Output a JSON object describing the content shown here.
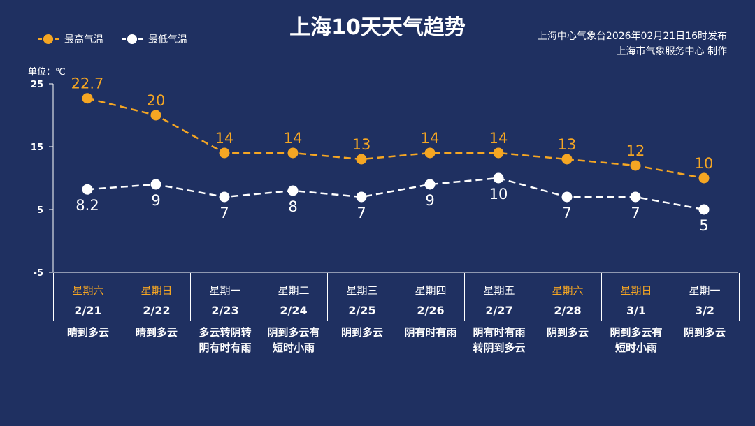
{
  "header": {
    "title": "上海10天天气趋势",
    "source_line1": "上海中心气象台2026年02月21日16时发布",
    "source_line2": "上海市气象服务中心  制作",
    "unit": "单位：℃"
  },
  "legend": {
    "high": "最高气温",
    "low": "最低气温"
  },
  "colors": {
    "background": "#1f3061",
    "high": "#f5a623",
    "low": "#ffffff",
    "weekend_text": "#f5a623"
  },
  "chart_data": {
    "type": "line",
    "title": "上海10天天气趋势",
    "ylabel": "单位：℃",
    "ylim": [
      -5,
      25
    ],
    "yticks": [
      25,
      15,
      5,
      -5
    ],
    "categories": [
      "2/21",
      "2/22",
      "2/23",
      "2/24",
      "2/25",
      "2/26",
      "2/27",
      "2/28",
      "3/1",
      "3/2"
    ],
    "series": [
      {
        "name": "最高气温",
        "values": [
          22.7,
          20,
          14,
          14,
          13,
          14,
          14,
          13,
          12,
          10
        ],
        "labels": [
          "22.7",
          "20",
          "14",
          "14",
          "13",
          "14",
          "14",
          "13",
          "12",
          "10"
        ]
      },
      {
        "name": "最低气温",
        "values": [
          8.2,
          9,
          7,
          8,
          7,
          9,
          10,
          7,
          7,
          5
        ],
        "labels": [
          "8.2",
          "9",
          "7",
          "8",
          "7",
          "9",
          "10",
          "7",
          "7",
          "5"
        ]
      }
    ],
    "legend_position": "top-left",
    "grid": false
  },
  "days": [
    {
      "weekday": "星期六",
      "date": "2/21",
      "weather": [
        "晴到多云"
      ],
      "weekend": true
    },
    {
      "weekday": "星期日",
      "date": "2/22",
      "weather": [
        "晴到多云"
      ],
      "weekend": true
    },
    {
      "weekday": "星期一",
      "date": "2/23",
      "weather": [
        "多云转阴转",
        "阴有时有雨"
      ],
      "weekend": false
    },
    {
      "weekday": "星期二",
      "date": "2/24",
      "weather": [
        "阴到多云有",
        "短时小雨"
      ],
      "weekend": false
    },
    {
      "weekday": "星期三",
      "date": "2/25",
      "weather": [
        "阴到多云"
      ],
      "weekend": false
    },
    {
      "weekday": "星期四",
      "date": "2/26",
      "weather": [
        "阴有时有雨"
      ],
      "weekend": false
    },
    {
      "weekday": "星期五",
      "date": "2/27",
      "weather": [
        "阴有时有雨",
        "转阴到多云"
      ],
      "weekend": false
    },
    {
      "weekday": "星期六",
      "date": "2/28",
      "weather": [
        "阴到多云"
      ],
      "weekend": true
    },
    {
      "weekday": "星期日",
      "date": "3/1",
      "weather": [
        "阴到多云有",
        "短时小雨"
      ],
      "weekend": true
    },
    {
      "weekday": "星期一",
      "date": "3/2",
      "weather": [
        "阴到多云"
      ],
      "weekend": false
    }
  ]
}
